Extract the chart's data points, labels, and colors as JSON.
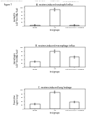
{
  "header_text": "Patent Application Publication",
  "header_date": "Aug. 14, 2014",
  "header_sheet": "Sheet 7 of 8",
  "header_num": "US 2014/0228367 A1",
  "figure_label": "Figure 7",
  "panels": [
    {
      "title": "A. neutron-induced neutrophil influx",
      "groups": [
        "citrate",
        "LPS",
        "anti-mCXCR2 + mglgG2"
      ],
      "values": [
        4,
        90,
        4
      ],
      "errors": [
        1.5,
        7,
        1.5
      ],
      "ylabel": "neutrophils\n(x10^6/ml BAL fluid)",
      "ylim": [
        0,
        110
      ],
      "yticks": [
        0,
        20,
        40,
        60,
        80,
        100
      ]
    },
    {
      "title": "B. neutron-induced macrophage influx",
      "groups": [
        "citrate",
        "LPS",
        "anti-mCXCR2 + mglgG2"
      ],
      "values": [
        28,
        80,
        52
      ],
      "errors": [
        4,
        7,
        6
      ],
      "ylabel": "macrophages\n(x10^5/ml BAL fluid)",
      "ylim": [
        0,
        100
      ],
      "yticks": [
        0,
        20,
        40,
        60,
        80,
        100
      ]
    },
    {
      "title": "C. neutron-induced lung leakage",
      "groups": [
        "citrate",
        "LPS",
        "anti-mCXCR2 + mglgG2"
      ],
      "values": [
        25,
        88,
        35
      ],
      "errors": [
        3,
        6,
        4
      ],
      "ylabel": "Evans blue\n(ug/ml lung)",
      "ylim": [
        0,
        105
      ],
      "yticks": [
        0,
        20,
        40,
        60,
        80,
        100
      ]
    }
  ],
  "bar_color": "#ffffff",
  "bar_edge": "#000000",
  "title_fontsize": 2.2,
  "label_fontsize": 1.8,
  "tick_fontsize": 1.6,
  "header_fontsize": 1.5,
  "fig_label_fontsize": 2.0,
  "background": "#ffffff"
}
